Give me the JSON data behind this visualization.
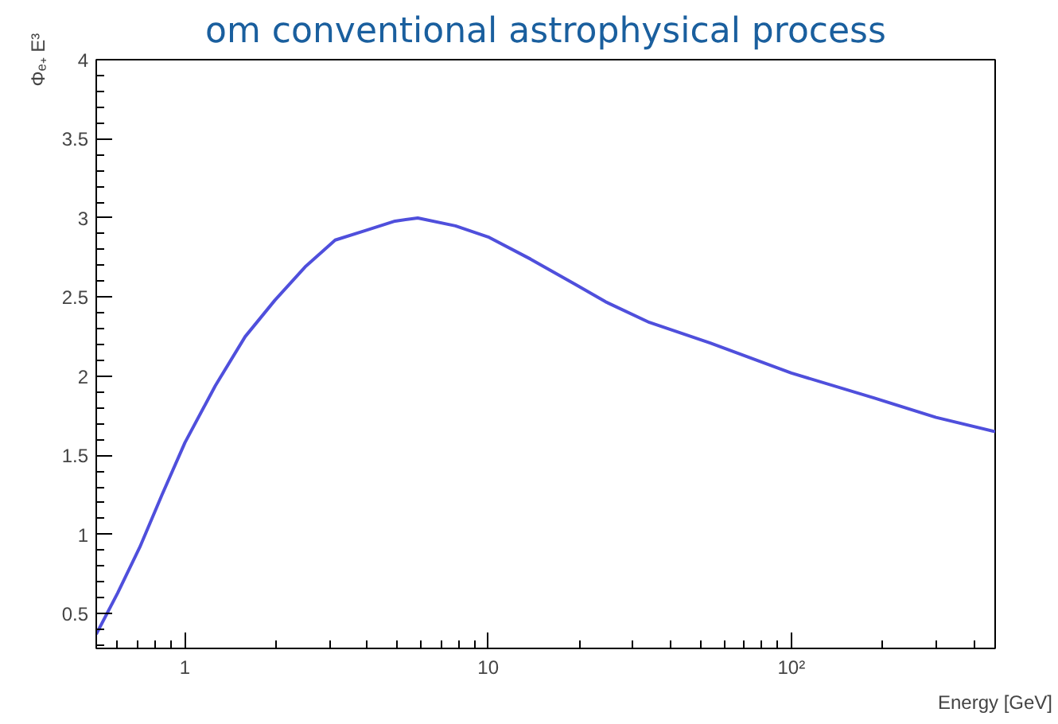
{
  "chart_data": {
    "type": "line",
    "title": "om conventional astrophysical process",
    "xlabel": "Energy [GeV]",
    "ylabel": "Φₑ₊ E³",
    "log": "x",
    "xlim": [
      0.51,
      470
    ],
    "ylim": [
      0.28,
      4
    ],
    "xticks": [
      1,
      10,
      {
        "value": 100,
        "label": "10²"
      }
    ],
    "yticks": [
      0.5,
      1,
      1.5,
      2,
      2.5,
      3,
      3.5,
      4
    ],
    "series": [
      {
        "color": "#4f4fdc",
        "x": [
          0.51,
          0.6,
          0.71,
          0.84,
          1.0,
          1.26,
          1.58,
          1.98,
          2.49,
          3.13,
          3.93,
          4.93,
          5.86,
          7.8,
          10,
          13.8,
          19.4,
          24.4,
          34,
          54,
          100,
          189,
          300,
          470
        ],
        "values": [
          0.37,
          0.63,
          0.92,
          1.25,
          1.58,
          1.94,
          2.25,
          2.48,
          2.69,
          2.86,
          2.92,
          2.98,
          3.0,
          2.95,
          2.88,
          2.74,
          2.58,
          2.47,
          2.34,
          2.21,
          2.02,
          1.86,
          1.74,
          1.65
        ]
      }
    ]
  }
}
